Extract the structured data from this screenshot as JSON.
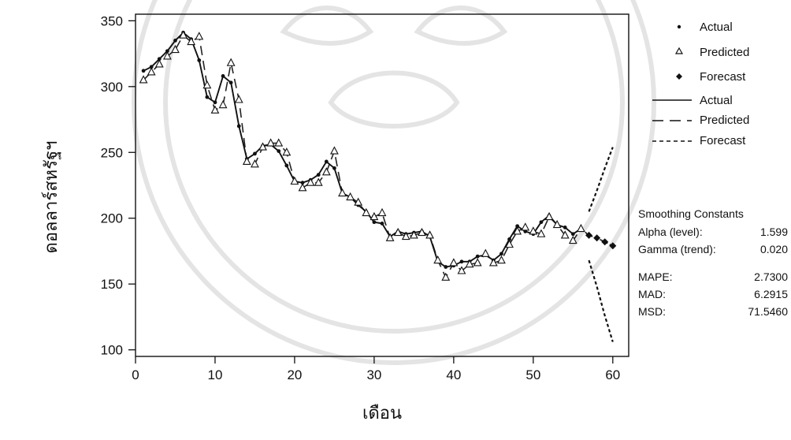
{
  "chart_data": {
    "type": "line",
    "title": "",
    "xlabel": "เดือน",
    "ylabel": "ดอลลาร์สหรัฐฯ",
    "xlim": [
      0,
      62
    ],
    "ylim": [
      95,
      355
    ],
    "xticks": [
      0,
      10,
      20,
      30,
      40,
      50,
      60
    ],
    "yticks": [
      100,
      150,
      200,
      250,
      300,
      350
    ],
    "grid": false,
    "legend_position": "right",
    "series": [
      {
        "name": "Actual",
        "style": "solid-dot",
        "x": [
          1,
          2,
          3,
          4,
          5,
          6,
          7,
          8,
          9,
          10,
          11,
          12,
          13,
          14,
          15,
          16,
          17,
          18,
          19,
          20,
          21,
          22,
          23,
          24,
          25,
          26,
          27,
          28,
          29,
          30,
          31,
          32,
          33,
          34,
          35,
          36,
          37,
          38,
          39,
          40,
          41,
          42,
          43,
          44,
          45,
          46,
          47,
          48,
          49,
          50,
          51,
          52,
          53,
          54,
          55,
          56
        ],
        "values": [
          312,
          315,
          321,
          327,
          335,
          341,
          336,
          320,
          292,
          288,
          308,
          303,
          270,
          245,
          249,
          255,
          256,
          251,
          240,
          228,
          227,
          229,
          233,
          243,
          238,
          219,
          216,
          210,
          205,
          197,
          196,
          186,
          190,
          188,
          189,
          190,
          186,
          167,
          163,
          164,
          167,
          167,
          171,
          172,
          168,
          173,
          184,
          194,
          190,
          188,
          197,
          202,
          195,
          193,
          188,
          192
        ]
      },
      {
        "name": "Predicted",
        "style": "dashed-triangle",
        "x": [
          1,
          2,
          3,
          4,
          5,
          6,
          7,
          8,
          9,
          10,
          11,
          12,
          13,
          14,
          15,
          16,
          17,
          18,
          19,
          20,
          21,
          22,
          23,
          24,
          25,
          26,
          27,
          28,
          29,
          30,
          31,
          32,
          33,
          34,
          35,
          36,
          37,
          38,
          39,
          40,
          41,
          42,
          43,
          44,
          45,
          46,
          47,
          48,
          49,
          50,
          51,
          52,
          53,
          54,
          55,
          56
        ],
        "values": [
          305,
          311,
          317,
          323,
          328,
          339,
          334,
          338,
          301,
          282,
          286,
          318,
          290,
          243,
          241,
          254,
          257,
          257,
          250,
          228,
          223,
          227,
          227,
          235,
          251,
          219,
          216,
          212,
          204,
          201,
          204,
          185,
          189,
          186,
          187,
          189,
          187,
          168,
          155,
          166,
          160,
          165,
          166,
          173,
          166,
          168,
          180,
          190,
          193,
          190,
          188,
          201,
          195,
          187,
          183,
          192
        ]
      },
      {
        "name": "Forecast",
        "style": "diamond",
        "x": [
          57,
          58,
          59,
          60
        ],
        "values": [
          187,
          185,
          182,
          179
        ],
        "upper": [
          205,
          221,
          238,
          254
        ],
        "lower": [
          168,
          148,
          126,
          106
        ]
      }
    ],
    "legend": {
      "symbols": [
        "Actual",
        "Predicted",
        "Forecast"
      ],
      "lines": [
        "Actual",
        "Predicted",
        "Forecast"
      ]
    },
    "stats": {
      "heading": "Smoothing Constants",
      "rows": [
        {
          "label": "Alpha (level):",
          "value": "1.599"
        },
        {
          "label": "Gamma (trend):",
          "value": "0.020"
        }
      ],
      "accuracy": [
        {
          "label": "MAPE:",
          "value": "2.7300"
        },
        {
          "label": "MAD:",
          "value": "6.2915"
        },
        {
          "label": "MSD:",
          "value": "71.5460"
        }
      ]
    }
  }
}
